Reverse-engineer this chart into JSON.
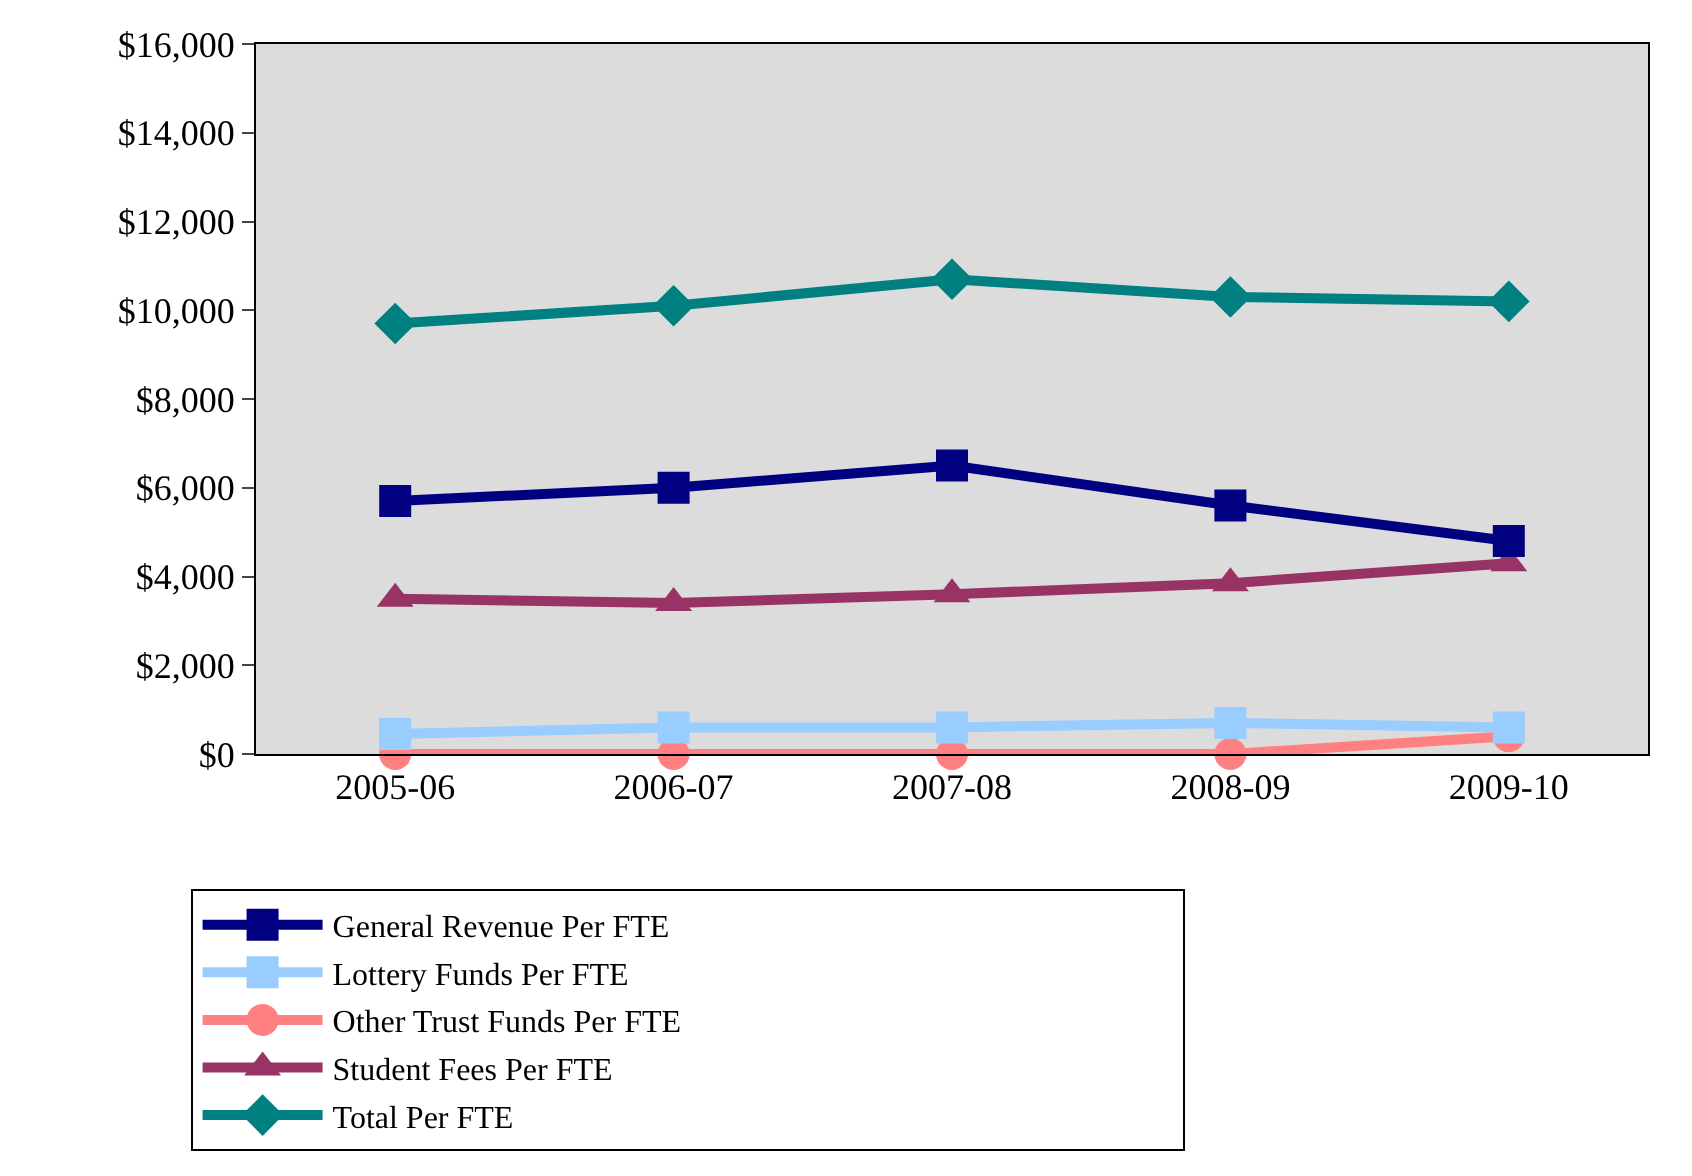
{
  "chart_data": {
    "type": "line",
    "categories": [
      "2005-06",
      "2006-07",
      "2007-08",
      "2008-09",
      "2009-10"
    ],
    "ylim": [
      0,
      16000
    ],
    "yticks": [
      {
        "value": 0,
        "label": "$0"
      },
      {
        "value": 2000,
        "label": "$2,000"
      },
      {
        "value": 4000,
        "label": "$4,000"
      },
      {
        "value": 6000,
        "label": "$6,000"
      },
      {
        "value": 8000,
        "label": "$8,000"
      },
      {
        "value": 10000,
        "label": "$10,000"
      },
      {
        "value": 12000,
        "label": "$12,000"
      },
      {
        "value": 14000,
        "label": "$14,000"
      },
      {
        "value": 16000,
        "label": "$16,000"
      }
    ],
    "grid": false,
    "legend": "bottom",
    "line_style": "solid",
    "series": [
      {
        "name": "General Revenue Per FTE",
        "color": "#000080",
        "marker": "square",
        "values": [
          5700,
          6000,
          6500,
          5600,
          4800
        ]
      },
      {
        "name": "Lottery Funds Per FTE",
        "color": "#99ccff",
        "marker": "square",
        "values": [
          450,
          600,
          600,
          700,
          600
        ]
      },
      {
        "name": "Other Trust Funds Per FTE",
        "color": "#ff8080",
        "marker": "circle",
        "values": [
          0,
          0,
          0,
          0,
          400
        ]
      },
      {
        "name": "Student Fees Per FTE",
        "color": "#993366",
        "marker": "triangle",
        "values": [
          3500,
          3400,
          3600,
          3850,
          4300
        ]
      },
      {
        "name": "Total Per FTE",
        "color": "#008080",
        "marker": "diamond",
        "values": [
          9700,
          10100,
          10700,
          10300,
          10200
        ]
      }
    ]
  }
}
